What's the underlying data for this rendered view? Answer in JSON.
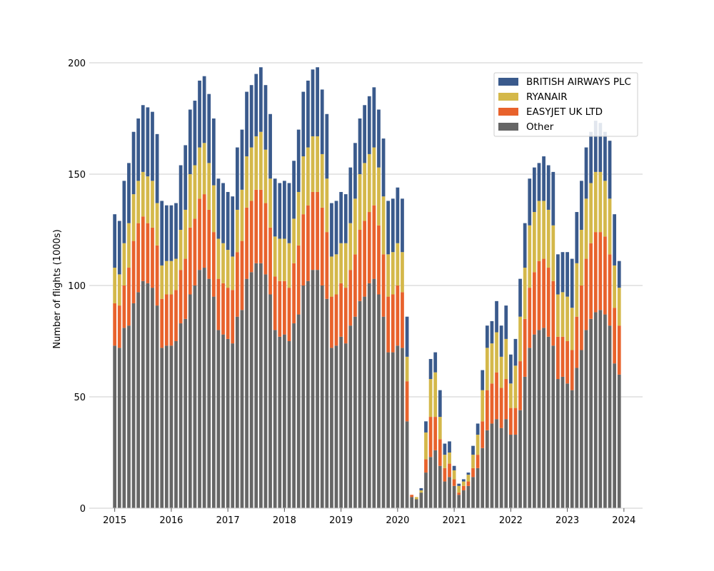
{
  "chart_data": {
    "type": "bar",
    "stacked": true,
    "title": "",
    "xlabel": "",
    "ylabel": "Number of flights (1000s)",
    "ylim": [
      0,
      200
    ],
    "xlim": [
      2014.55,
      2024.33
    ],
    "yticks": [
      0,
      50,
      100,
      150,
      200
    ],
    "xticks": [
      2015,
      2016,
      2017,
      2018,
      2019,
      2020,
      2021,
      2022,
      2023,
      2024
    ],
    "xtick_labels": [
      "2015",
      "2016",
      "2017",
      "2018",
      "2019",
      "2020",
      "2021",
      "2022",
      "2023",
      "2024"
    ],
    "ytick_labels": [
      "0",
      "50",
      "100",
      "150",
      "200"
    ],
    "grid": "horizontal",
    "legend_position": "top-right",
    "start_year": 2015,
    "start_month": 1,
    "series": [
      {
        "name": "Other",
        "color": "#666666",
        "values": [
          73,
          72,
          81,
          82,
          92,
          97,
          102,
          101,
          99,
          91,
          72,
          73,
          73,
          75,
          83,
          85,
          96,
          100,
          107,
          108,
          103,
          95,
          80,
          78,
          76,
          74,
          86,
          89,
          103,
          106,
          110,
          110,
          105,
          96,
          80,
          77,
          78,
          75,
          83,
          87,
          100,
          102,
          107,
          107,
          100,
          94,
          72,
          73,
          77,
          74,
          82,
          86,
          93,
          95,
          101,
          103,
          96,
          86,
          70,
          70,
          73,
          72,
          39,
          5,
          4,
          7,
          16,
          23,
          26,
          19,
          12,
          14,
          10,
          6,
          8,
          10,
          14,
          18,
          27,
          35,
          38,
          40,
          36,
          40,
          33,
          33,
          44,
          59,
          72,
          78,
          80,
          81,
          77,
          73,
          58,
          59,
          56,
          53,
          63,
          71,
          80,
          85,
          88,
          89,
          87,
          82,
          65,
          60
        ]
      },
      {
        "name": "EASYJET UK LTD",
        "color": "#e8622c",
        "values": [
          19,
          19,
          19,
          26,
          28,
          31,
          29,
          27,
          27,
          27,
          22,
          23,
          23,
          23,
          24,
          27,
          30,
          30,
          32,
          33,
          31,
          29,
          23,
          23,
          23,
          24,
          29,
          31,
          32,
          32,
          33,
          33,
          32,
          30,
          24,
          25,
          24,
          24,
          27,
          31,
          32,
          34,
          35,
          35,
          35,
          30,
          23,
          23,
          24,
          25,
          25,
          28,
          32,
          34,
          32,
          33,
          31,
          28,
          25,
          26,
          27,
          25,
          18,
          1,
          0,
          0,
          6,
          18,
          15,
          12,
          6,
          6,
          3,
          1,
          2,
          2,
          4,
          6,
          12,
          18,
          18,
          21,
          18,
          18,
          12,
          12,
          22,
          26,
          27,
          28,
          31,
          31,
          31,
          29,
          19,
          18,
          19,
          18,
          23,
          29,
          32,
          34,
          36,
          35,
          35,
          32,
          25,
          22
        ]
      },
      {
        "name": "RYANAIR",
        "color": "#d4b84a",
        "values": [
          16,
          14,
          19,
          20,
          21,
          19,
          20,
          21,
          21,
          19,
          15,
          15,
          15,
          14,
          18,
          22,
          24,
          24,
          23,
          23,
          21,
          21,
          18,
          18,
          17,
          15,
          19,
          23,
          23,
          24,
          24,
          26,
          24,
          22,
          18,
          19,
          19,
          20,
          20,
          24,
          26,
          26,
          25,
          25,
          24,
          24,
          18,
          18,
          18,
          20,
          21,
          25,
          25,
          26,
          26,
          26,
          26,
          26,
          19,
          19,
          19,
          18,
          11,
          0,
          1,
          1,
          12,
          17,
          20,
          10,
          6,
          5,
          4,
          3,
          2,
          3,
          6,
          9,
          14,
          19,
          18,
          18,
          14,
          18,
          11,
          19,
          20,
          23,
          28,
          27,
          27,
          26,
          26,
          25,
          19,
          20,
          20,
          19,
          24,
          25,
          27,
          27,
          27,
          27,
          25,
          25,
          19,
          17
        ]
      },
      {
        "name": "BRITISH AIRWAYS PLC",
        "color": "#3a5a8c",
        "values": [
          24,
          24,
          28,
          27,
          28,
          28,
          30,
          31,
          31,
          31,
          29,
          25,
          25,
          25,
          29,
          29,
          29,
          29,
          30,
          30,
          31,
          30,
          27,
          27,
          26,
          27,
          28,
          27,
          29,
          28,
          28,
          29,
          29,
          29,
          26,
          25,
          26,
          27,
          26,
          28,
          29,
          30,
          30,
          31,
          29,
          29,
          24,
          24,
          23,
          22,
          25,
          25,
          25,
          26,
          26,
          27,
          26,
          26,
          24,
          24,
          25,
          24,
          18,
          0,
          0,
          1,
          5,
          9,
          9,
          12,
          5,
          5,
          2,
          1,
          1,
          1,
          4,
          5,
          9,
          10,
          10,
          14,
          14,
          15,
          13,
          12,
          17,
          20,
          21,
          20,
          17,
          20,
          20,
          24,
          18,
          18,
          20,
          22,
          23,
          22,
          23,
          23,
          23,
          22,
          22,
          26,
          23,
          12
        ]
      }
    ]
  },
  "legend": {
    "items": [
      {
        "label": "BRITISH AIRWAYS PLC",
        "color": "#3a5a8c"
      },
      {
        "label": "RYANAIR",
        "color": "#d4b84a"
      },
      {
        "label": "EASYJET UK LTD",
        "color": "#e8622c"
      },
      {
        "label": "Other",
        "color": "#666666"
      }
    ]
  }
}
